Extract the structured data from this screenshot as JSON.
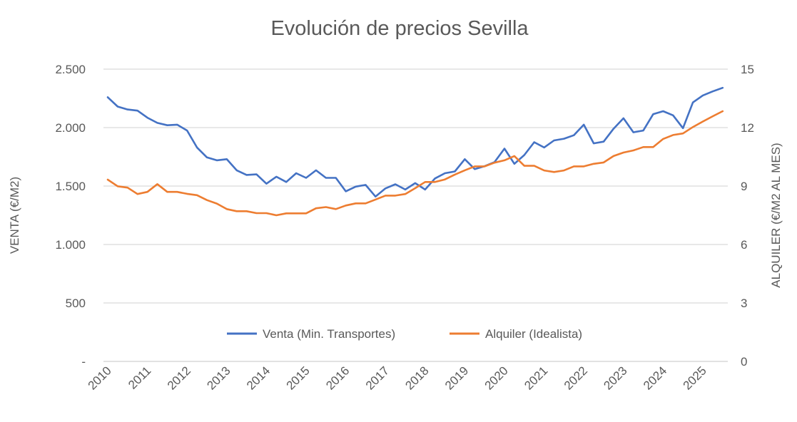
{
  "chart_data": {
    "type": "line",
    "title": "Evolución de precios Sevilla",
    "ylabel": "VENTA (€/M2)",
    "y2label": "ALQUILER (€/M2 AL MES)",
    "xlabel": "",
    "ylim": [
      0,
      2500
    ],
    "y2lim": [
      0,
      15
    ],
    "y_ticks": [
      0,
      500,
      1000,
      1500,
      2000,
      2500
    ],
    "y_tick_labels": [
      "-",
      "500",
      "1.000",
      "1.500",
      "2.000",
      "2.500"
    ],
    "y2_ticks": [
      0,
      3,
      6,
      9,
      12,
      15
    ],
    "y2_tick_labels": [
      "0",
      "3",
      "6",
      "9",
      "12",
      "15"
    ],
    "x_tick_labels": [
      "2010",
      "2011",
      "2012",
      "2013",
      "2014",
      "2015",
      "2016",
      "2017",
      "2018",
      "2019",
      "2020",
      "2021",
      "2022",
      "2023",
      "2024",
      "2025"
    ],
    "x_frequency": "quarterly",
    "x_start": "2010",
    "grid": true,
    "legend_position": "bottom-inside",
    "series": [
      {
        "name": "Venta (Min. Transportes)",
        "axis": "left",
        "color": "#4472C4",
        "values": [
          2260,
          2180,
          2155,
          2145,
          2085,
          2040,
          2020,
          2025,
          1975,
          1830,
          1745,
          1720,
          1730,
          1635,
          1595,
          1600,
          1520,
          1580,
          1535,
          1610,
          1570,
          1635,
          1570,
          1570,
          1455,
          1495,
          1510,
          1410,
          1480,
          1515,
          1470,
          1525,
          1470,
          1565,
          1610,
          1625,
          1730,
          1645,
          1670,
          1705,
          1820,
          1690,
          1765,
          1875,
          1830,
          1890,
          1905,
          1935,
          2025,
          1865,
          1880,
          1990,
          2080,
          1960,
          1975,
          2115,
          2140,
          2105,
          1995,
          2215,
          2275,
          2310,
          2340
        ]
      },
      {
        "name": "Alquiler (Idealista)",
        "axis": "right",
        "color": "#ED7D31",
        "values": [
          9.33,
          8.99,
          8.92,
          8.59,
          8.7,
          9.1,
          8.7,
          8.7,
          8.6,
          8.53,
          8.28,
          8.1,
          7.82,
          7.71,
          7.71,
          7.61,
          7.61,
          7.5,
          7.6,
          7.6,
          7.6,
          7.86,
          7.92,
          7.82,
          8.0,
          8.11,
          8.11,
          8.31,
          8.51,
          8.51,
          8.59,
          8.89,
          9.21,
          9.21,
          9.34,
          9.59,
          9.81,
          10.01,
          10.01,
          10.2,
          10.32,
          10.54,
          10.04,
          10.04,
          9.8,
          9.72,
          9.8,
          10.01,
          10.01,
          10.14,
          10.21,
          10.54,
          10.72,
          10.83,
          11.0,
          11.0,
          11.42,
          11.62,
          11.7,
          12.03,
          12.31,
          12.58,
          12.84
        ]
      }
    ]
  }
}
